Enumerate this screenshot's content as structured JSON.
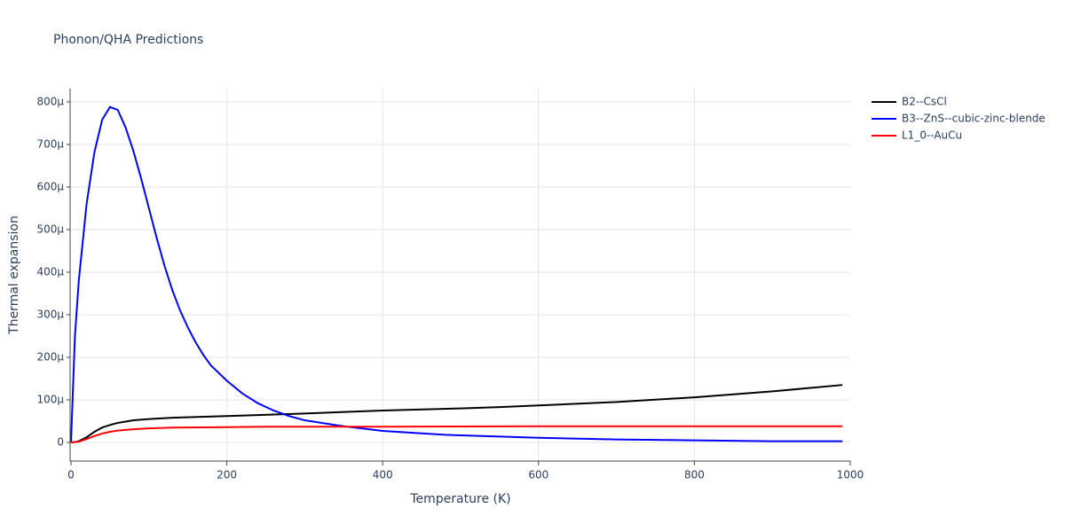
{
  "chart_data": {
    "type": "line",
    "title": "Phonon/QHA Predictions",
    "x_label": "Temperature (K)",
    "y_label": "Thermal expansion",
    "xlim": [
      0,
      1000
    ],
    "ylim": [
      -4.37e-05,
      0.000831
    ],
    "xticks": [
      0,
      200,
      400,
      600,
      800,
      1000
    ],
    "yticks": [
      0,
      {
        "value": 0.0001,
        "label": "100µ"
      },
      {
        "value": 0.0002,
        "label": "200µ"
      },
      {
        "value": 0.0003,
        "label": "300µ"
      },
      {
        "value": 0.0004,
        "label": "400µ"
      },
      {
        "value": 0.0005,
        "label": "500µ"
      },
      {
        "value": 0.0006,
        "label": "600µ"
      },
      {
        "value": 0.0007,
        "label": "700µ"
      },
      {
        "value": 0.0008,
        "label": "800µ"
      }
    ],
    "grid": true,
    "legend": "right",
    "series": [
      {
        "name": "B2--CsCl",
        "color": "#000000",
        "x": [
          0,
          5,
          10,
          20,
          30,
          40,
          50,
          60,
          70,
          80,
          100,
          130,
          200,
          300,
          400,
          500,
          550,
          600,
          700,
          800,
          900,
          990
        ],
        "values": [
          0,
          1e-06,
          3e-06,
          1.2e-05,
          2.5e-05,
          3.5e-05,
          4.1e-05,
          4.6e-05,
          4.9e-05,
          5.2e-05,
          5.5e-05,
          5.8e-05,
          6.2e-05,
          6.8e-05,
          7.5e-05,
          8e-05,
          8.3e-05,
          8.7e-05,
          9.5e-05,
          0.000106,
          0.00012,
          0.000135
        ]
      },
      {
        "name": "B3--ZnS--cubic-zinc-blende",
        "color": "#0000ff",
        "x": [
          0,
          5,
          10,
          20,
          30,
          40,
          50,
          60,
          70,
          80,
          90,
          100,
          110,
          120,
          130,
          140,
          150,
          160,
          170,
          180,
          200,
          220,
          240,
          260,
          280,
          300,
          350,
          400,
          480,
          600,
          700,
          800,
          900,
          990
        ],
        "values": [
          0,
          0.000248,
          0.00038,
          0.00056,
          0.000681,
          0.000758,
          0.000788,
          0.000781,
          0.00074,
          0.000685,
          0.00062,
          0.00055,
          0.00048,
          0.000415,
          0.000358,
          0.00031,
          0.00027,
          0.000235,
          0.000205,
          0.00018,
          0.000145,
          0.000115,
          9.2e-05,
          7.5e-05,
          6.2e-05,
          5.2e-05,
          3.8e-05,
          2.7e-05,
          1.8e-05,
          1.1e-05,
          7e-06,
          5e-06,
          3e-06,
          3e-06
        ]
      },
      {
        "name": "L1_0--AuCu",
        "color": "#ff0000",
        "x": [
          0,
          10,
          20,
          30,
          40,
          50,
          60,
          80,
          100,
          130,
          200,
          250,
          300,
          400,
          600,
          800,
          990
        ],
        "values": [
          0,
          2e-06,
          8e-06,
          1.5e-05,
          2.1e-05,
          2.5e-05,
          2.8e-05,
          3.1e-05,
          3.3e-05,
          3.5e-05,
          3.6e-05,
          3.7e-05,
          3.7e-05,
          3.7e-05,
          3.8e-05,
          3.8e-05,
          3.8e-05
        ]
      }
    ]
  }
}
